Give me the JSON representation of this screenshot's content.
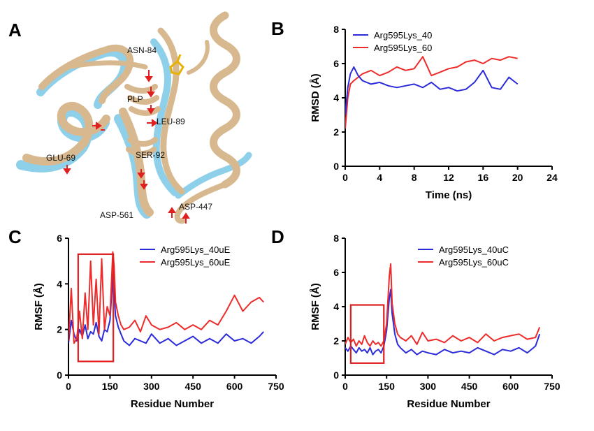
{
  "panels": {
    "A": {
      "letter": "A"
    },
    "B": {
      "letter": "B"
    },
    "C": {
      "letter": "C"
    },
    "D": {
      "letter": "D"
    }
  },
  "structure": {
    "labels": [
      "ASN-84",
      "PLP",
      "LEU-89",
      "GLU-69",
      "SER-92",
      "ASP-561",
      "ASP-447"
    ],
    "colors": {
      "tan": "#d8b88e",
      "blue": "#8ed0ea",
      "arrow": "#e02020",
      "plp": "#e8b000"
    }
  },
  "colors": {
    "blue": "#2b2bd9",
    "red": "#ee2b2b",
    "box": "#e02020"
  },
  "chart_data": [
    {
      "id": "B",
      "type": "line",
      "xlabel": "Time (ns)",
      "ylabel": "RMSD (Å)",
      "xlim": [
        0,
        24
      ],
      "ylim": [
        0,
        8
      ],
      "xticks": [
        0,
        4,
        8,
        12,
        16,
        20,
        24
      ],
      "yticks": [
        0,
        2,
        4,
        6,
        8
      ],
      "legend_position": "top-left",
      "series": [
        {
          "name": "Arg595Lys_40",
          "color": "#2b2bd9",
          "x": [
            0,
            0.3,
            0.6,
            1,
            1.5,
            2,
            3,
            4,
            5,
            6,
            7,
            8,
            9,
            10,
            11,
            12,
            13,
            14,
            15,
            16,
            17,
            18,
            19,
            20
          ],
          "y": [
            3.0,
            4.6,
            5.4,
            5.8,
            5.3,
            5.0,
            4.8,
            4.9,
            4.7,
            4.6,
            4.7,
            4.8,
            4.6,
            4.9,
            4.5,
            4.6,
            4.4,
            4.5,
            4.9,
            5.6,
            4.6,
            4.5,
            5.2,
            4.8
          ]
        },
        {
          "name": "Arg595Lys_60",
          "color": "#ee2b2b",
          "x": [
            0,
            0.3,
            0.6,
            1,
            1.5,
            2,
            3,
            4,
            5,
            6,
            7,
            8,
            9,
            10,
            11,
            12,
            13,
            14,
            15,
            16,
            17,
            18,
            19,
            20
          ],
          "y": [
            2.2,
            4.0,
            4.8,
            5.0,
            5.2,
            5.4,
            5.6,
            5.3,
            5.5,
            5.8,
            5.6,
            5.7,
            6.4,
            5.3,
            5.5,
            5.7,
            5.8,
            6.1,
            6.2,
            6.0,
            6.3,
            6.2,
            6.4,
            6.3
          ]
        }
      ]
    },
    {
      "id": "C",
      "type": "line",
      "xlabel": "Residue Number",
      "ylabel": "RMSF (Å)",
      "xlim": [
        0,
        750
      ],
      "ylim": [
        0,
        6
      ],
      "xticks": [
        0,
        150,
        300,
        450,
        600,
        750
      ],
      "yticks": [
        0,
        2,
        4,
        6
      ],
      "legend_position": "top",
      "highlight_box": {
        "x": [
          35,
          162
        ],
        "y": [
          0.6,
          5.3
        ]
      },
      "series": [
        {
          "name": "Arg595Lys_40uE",
          "color": "#2b2bd9",
          "x": [
            0,
            10,
            20,
            30,
            40,
            50,
            60,
            70,
            80,
            90,
            100,
            110,
            120,
            130,
            140,
            150,
            160,
            165,
            170,
            180,
            190,
            200,
            220,
            240,
            260,
            280,
            300,
            330,
            360,
            390,
            420,
            450,
            480,
            510,
            540,
            570,
            600,
            630,
            660,
            690,
            705
          ],
          "y": [
            1.4,
            2.4,
            1.8,
            1.5,
            2.0,
            1.7,
            2.2,
            1.6,
            1.9,
            1.8,
            2.3,
            1.7,
            1.5,
            2.0,
            1.9,
            2.4,
            4.4,
            3.6,
            2.6,
            2.1,
            1.8,
            1.5,
            1.3,
            1.6,
            1.5,
            1.4,
            1.8,
            1.4,
            1.6,
            1.3,
            1.5,
            1.7,
            1.4,
            1.6,
            1.4,
            1.8,
            1.5,
            1.6,
            1.4,
            1.7,
            1.9
          ]
        },
        {
          "name": "Arg595Lys_60uE",
          "color": "#ee2b2b",
          "x": [
            0,
            10,
            20,
            30,
            40,
            50,
            60,
            70,
            80,
            90,
            100,
            110,
            120,
            130,
            140,
            150,
            160,
            165,
            170,
            180,
            190,
            200,
            220,
            240,
            260,
            280,
            300,
            330,
            360,
            390,
            420,
            450,
            480,
            510,
            540,
            570,
            600,
            630,
            660,
            690,
            705
          ],
          "y": [
            1.5,
            3.8,
            1.4,
            1.6,
            2.8,
            1.6,
            3.6,
            2.0,
            5.0,
            2.2,
            4.2,
            1.8,
            5.1,
            2.0,
            3.0,
            2.6,
            5.4,
            4.8,
            3.2,
            2.6,
            2.2,
            2.0,
            2.1,
            2.4,
            1.9,
            2.6,
            2.2,
            2.0,
            2.1,
            2.3,
            2.0,
            2.2,
            2.0,
            2.4,
            2.2,
            2.8,
            3.5,
            2.8,
            3.2,
            3.4,
            3.2
          ]
        }
      ]
    },
    {
      "id": "D",
      "type": "line",
      "xlabel": "Residue Number",
      "ylabel": "RMSF (Å)",
      "xlim": [
        0,
        750
      ],
      "ylim": [
        0,
        8
      ],
      "xticks": [
        0,
        150,
        300,
        450,
        600,
        750
      ],
      "yticks": [
        0,
        2,
        4,
        6,
        8
      ],
      "legend_position": "top",
      "highlight_box": {
        "x": [
          20,
          140
        ],
        "y": [
          0.7,
          4.1
        ]
      },
      "series": [
        {
          "name": "Arg595Lys_40uC",
          "color": "#2b2bd9",
          "x": [
            0,
            10,
            20,
            30,
            40,
            50,
            60,
            70,
            80,
            90,
            100,
            110,
            120,
            130,
            140,
            150,
            160,
            165,
            170,
            180,
            190,
            200,
            220,
            240,
            260,
            280,
            300,
            330,
            360,
            390,
            420,
            450,
            480,
            510,
            540,
            570,
            600,
            630,
            660,
            690,
            705
          ],
          "y": [
            1.6,
            1.4,
            1.7,
            1.5,
            1.3,
            1.6,
            1.4,
            1.5,
            1.3,
            1.6,
            1.2,
            1.4,
            1.5,
            1.3,
            1.7,
            2.6,
            4.5,
            5.0,
            3.6,
            2.4,
            1.8,
            1.6,
            1.3,
            1.5,
            1.2,
            1.4,
            1.3,
            1.2,
            1.5,
            1.3,
            1.4,
            1.3,
            1.6,
            1.4,
            1.2,
            1.5,
            1.4,
            1.6,
            1.3,
            1.7,
            2.4
          ]
        },
        {
          "name": "Arg595Lys_60uC",
          "color": "#ee2b2b",
          "x": [
            0,
            10,
            20,
            30,
            40,
            50,
            60,
            70,
            80,
            90,
            100,
            110,
            120,
            130,
            140,
            150,
            160,
            165,
            170,
            180,
            190,
            200,
            220,
            240,
            260,
            280,
            300,
            330,
            360,
            390,
            420,
            450,
            480,
            510,
            540,
            570,
            600,
            630,
            660,
            690,
            705
          ],
          "y": [
            1.8,
            2.2,
            1.9,
            2.1,
            1.7,
            2.0,
            1.8,
            2.3,
            1.9,
            1.7,
            2.0,
            1.8,
            1.9,
            1.7,
            2.0,
            3.0,
            5.8,
            6.5,
            4.2,
            3.0,
            2.4,
            2.2,
            2.0,
            2.3,
            1.8,
            2.5,
            2.0,
            2.1,
            1.9,
            2.3,
            2.0,
            2.2,
            1.9,
            2.4,
            2.0,
            2.2,
            2.3,
            2.4,
            2.1,
            2.2,
            2.8
          ]
        }
      ]
    }
  ]
}
